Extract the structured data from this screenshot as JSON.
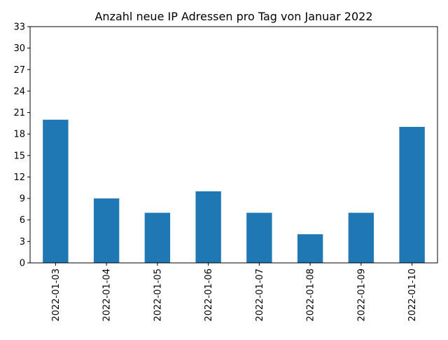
{
  "chart_data": {
    "type": "bar",
    "title": "Anzahl neue IP Adressen pro Tag von Januar 2022",
    "xlabel": "",
    "ylabel": "",
    "categories": [
      "2022-01-03",
      "2022-01-04",
      "2022-01-05",
      "2022-01-06",
      "2022-01-07",
      "2022-01-08",
      "2022-01-09",
      "2022-01-10"
    ],
    "values": [
      20,
      9,
      7,
      10,
      7,
      4,
      7,
      19
    ],
    "ylim": [
      0,
      33
    ],
    "yticks": [
      0,
      3,
      6,
      9,
      12,
      15,
      18,
      21,
      24,
      27,
      30,
      33
    ],
    "bar_color": "#1f77b4",
    "grid": false,
    "legend": "none"
  }
}
